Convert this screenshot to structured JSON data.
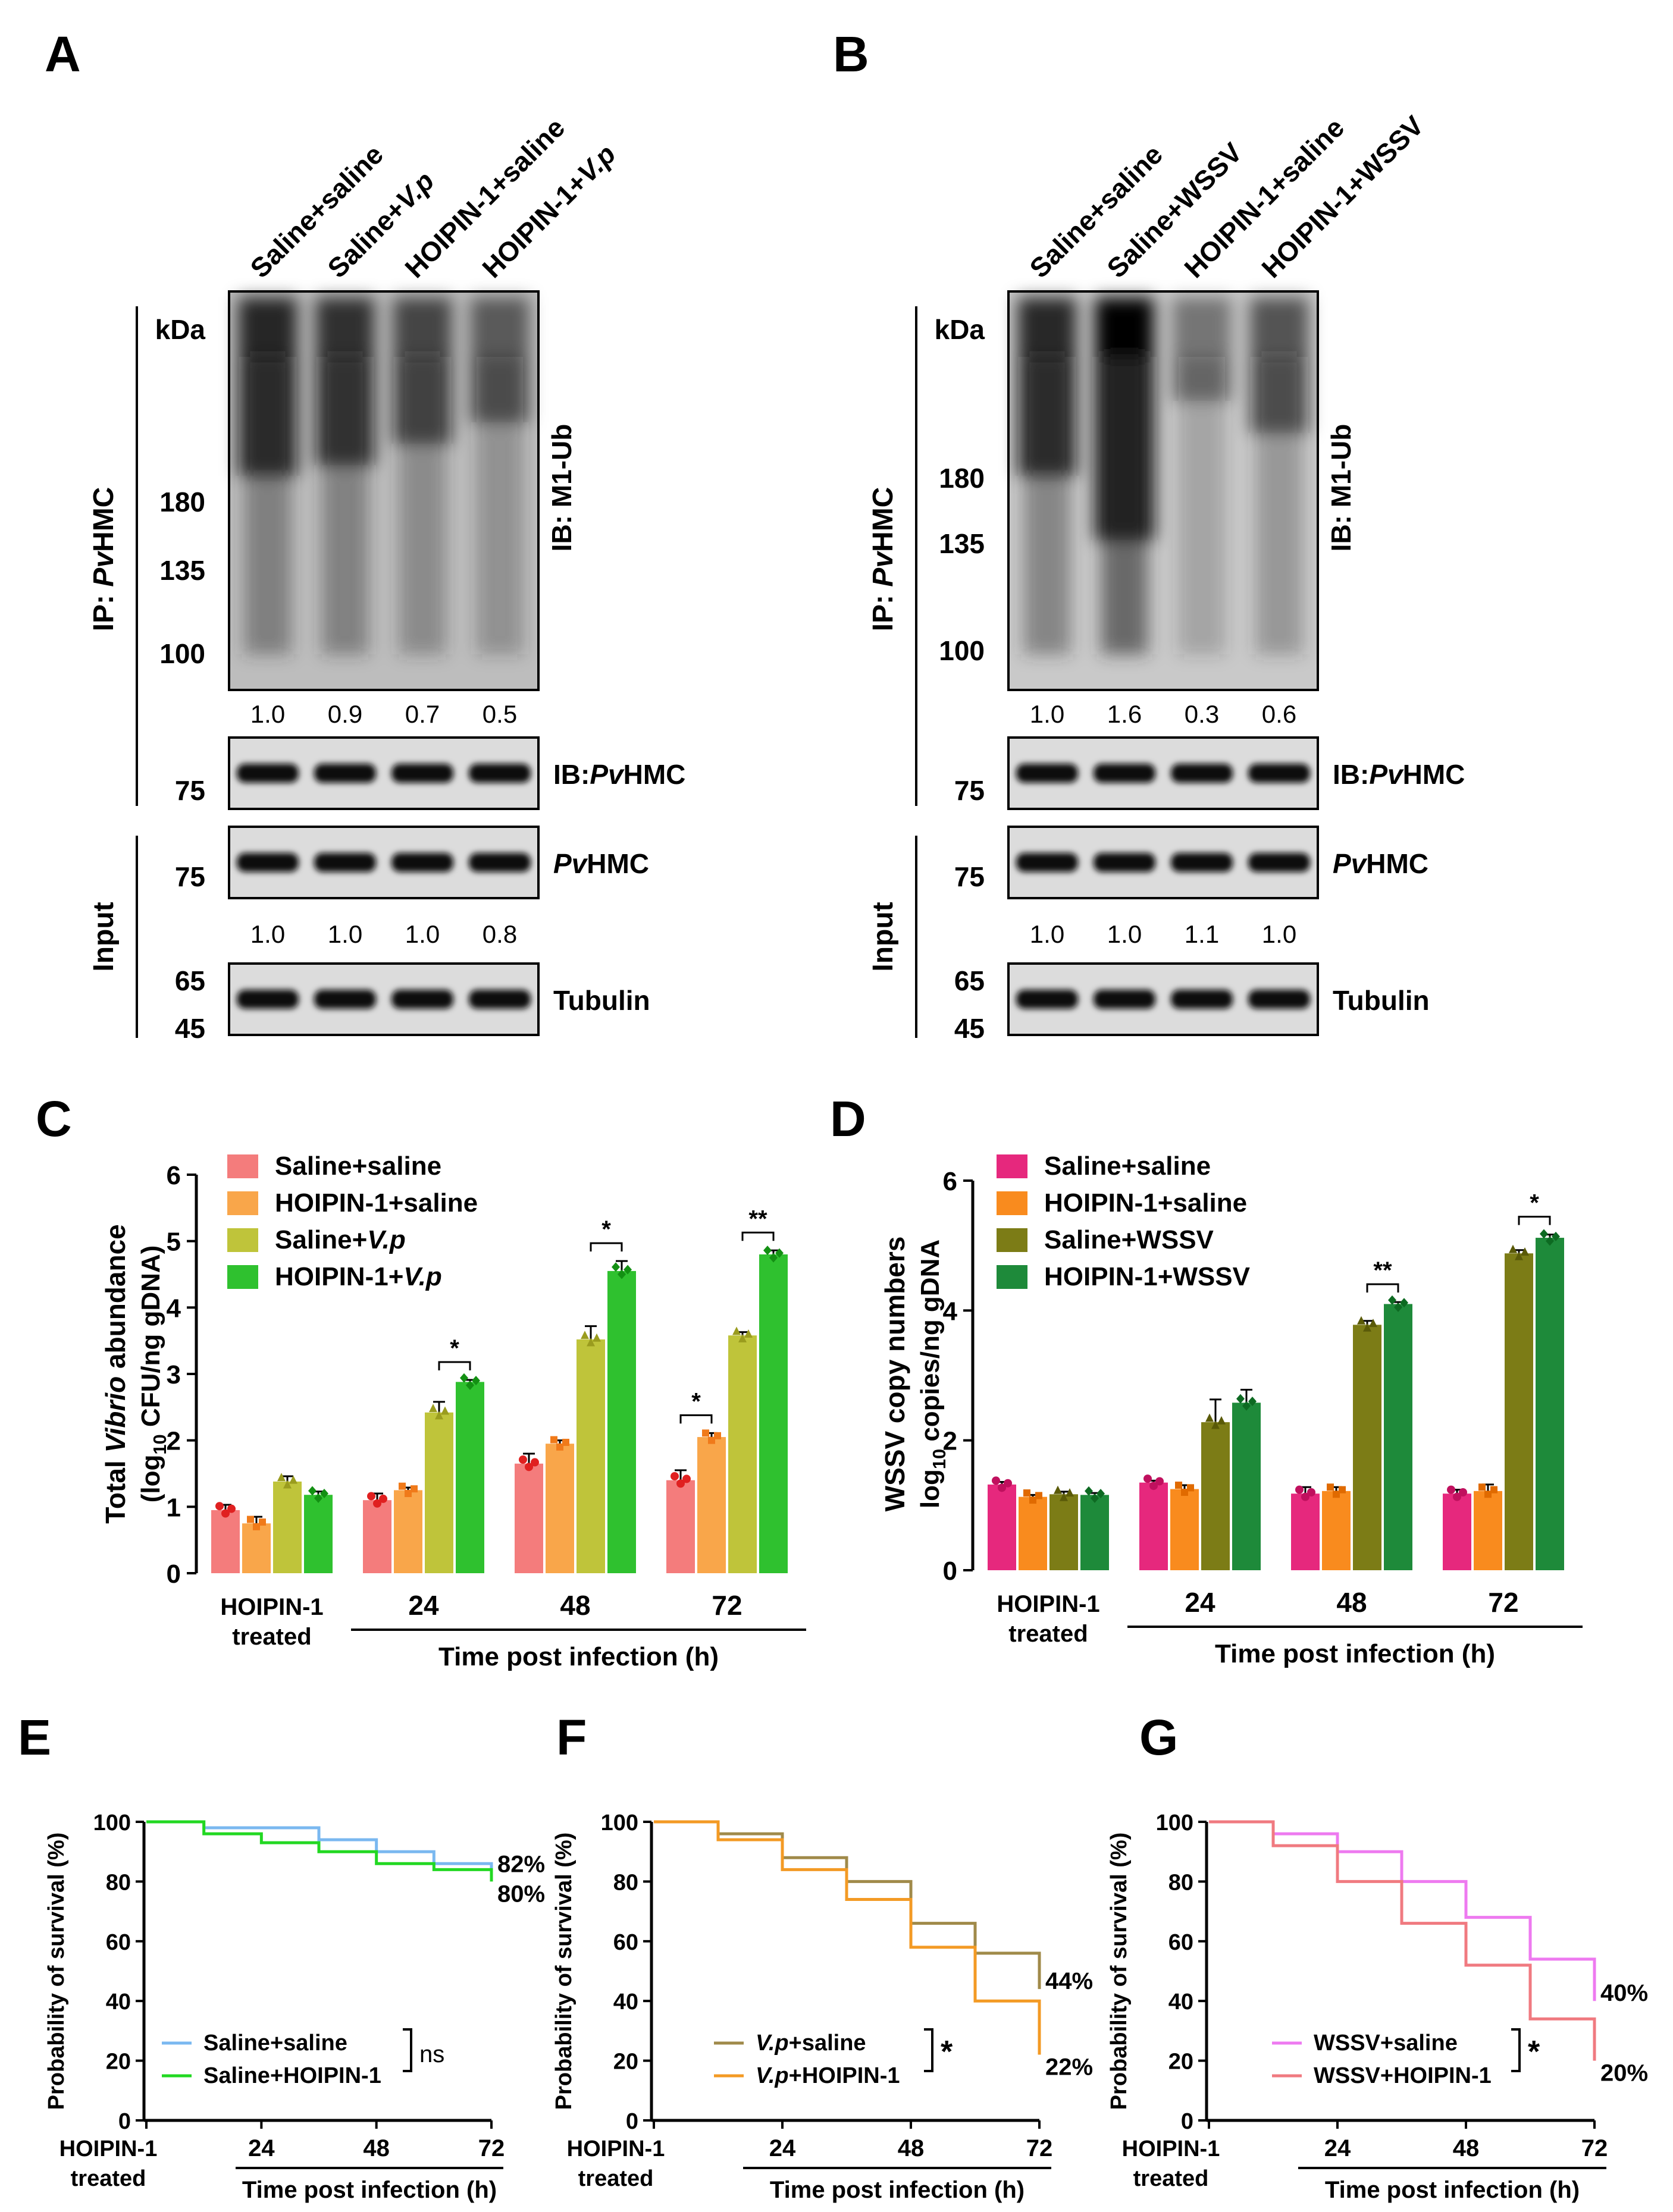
{
  "panels": {
    "A": {
      "letter": "A",
      "lanes": [
        "Saline+saline",
        "Saline+",
        "HOIPIN-1+saline",
        "HOIPIN-1+"
      ],
      "lanes_italic": [
        "",
        "V.p",
        "",
        "V.p"
      ],
      "ip_label_prefix": "IP: ",
      "ip_label_italic": "Pv",
      "ip_label_suffix": "HMC",
      "input_label": "Input",
      "kda": "kDa",
      "markers_top": [
        "180",
        "135",
        "100"
      ],
      "ib_label": "IB: M1-Ub",
      "quant_ub": [
        "1.0",
        "0.9",
        "0.7",
        "0.5"
      ],
      "marker_75a": "75",
      "ib_hmc_prefix": "IB:",
      "ib_hmc_italic": "Pv",
      "ib_hmc_suffix": "HMC",
      "marker_75b": "75",
      "hmc_italic": "Pv",
      "hmc_suffix": "HMC",
      "quant_input": [
        "1.0",
        "1.0",
        "1.0",
        "0.8"
      ],
      "markers_bottom": [
        "65",
        "45"
      ],
      "tubulin": "Tubulin",
      "ub_intensity": [
        1.0,
        0.9,
        0.7,
        0.5
      ]
    },
    "B": {
      "letter": "B",
      "lanes": [
        "Saline+saline",
        "Saline+WSSV",
        "HOIPIN-1+saline",
        "HOIPIN-1+WSSV"
      ],
      "ip_label_prefix": "IP: ",
      "ip_label_italic": "Pv",
      "ip_label_suffix": "HMC",
      "input_label": "Input",
      "kda": "kDa",
      "markers_top": [
        "180",
        "135",
        "100"
      ],
      "ib_label": "IB: M1-Ub",
      "quant_ub": [
        "1.0",
        "1.6",
        "0.3",
        "0.6"
      ],
      "marker_75a": "75",
      "ib_hmc_prefix": "IB:",
      "ib_hmc_italic": "Pv",
      "ib_hmc_suffix": "HMC",
      "marker_75b": "75",
      "hmc_italic": "Pv",
      "hmc_suffix": "HMC",
      "quant_input": [
        "1.0",
        "1.0",
        "1.1",
        "1.0"
      ],
      "markers_bottom": [
        "65",
        "45"
      ],
      "tubulin": "Tubulin",
      "ub_intensity": [
        1.0,
        1.6,
        0.3,
        0.6
      ]
    },
    "C": {
      "letter": "C"
    },
    "D": {
      "letter": "D"
    },
    "E": {
      "letter": "E"
    },
    "F": {
      "letter": "F"
    },
    "G": {
      "letter": "G"
    }
  },
  "chart_data": [
    {
      "id": "C",
      "type": "bar",
      "ylabel_parts": [
        "Total ",
        "Vibrio",
        " abundance"
      ],
      "ylabel2_parts": [
        "(log",
        "10",
        " CFU/ng gDNA)"
      ],
      "ylim": [
        0,
        6
      ],
      "yticks": [
        "0",
        "1",
        "2",
        "3",
        "4",
        "5",
        "6"
      ],
      "groups": [
        "HOIPIN-1",
        "24",
        "48",
        "72"
      ],
      "group_sub": "treated",
      "xlabel": "Time post infection (h)",
      "series": [
        {
          "name": "Saline+saline",
          "name_plain": "Saline+saline",
          "name_italic": "",
          "color": "#f47c7c",
          "dot": "#e02020",
          "values": [
            0.95,
            1.1,
            1.65,
            1.4
          ],
          "err": [
            0.08,
            0.1,
            0.15,
            0.15
          ]
        },
        {
          "name": "HOIPIN-1+saline",
          "name_plain": "HOIPIN-1+saline",
          "name_italic": "",
          "color": "#f9a64a",
          "dot": "#f07a1a",
          "values": [
            0.75,
            1.25,
            1.95,
            2.05
          ],
          "err": [
            0.1,
            0.04,
            0.05,
            0.06
          ]
        },
        {
          "name": "Saline+V.p",
          "name_plain": "Saline+",
          "name_italic": "V.p",
          "color": "#bfc43a",
          "dot": "#9a9c1e",
          "values": [
            1.38,
            2.42,
            3.52,
            3.58
          ],
          "err": [
            0.08,
            0.16,
            0.2,
            0.05
          ]
        },
        {
          "name": "HOIPIN-1+V.p",
          "name_plain": "HOIPIN-1+",
          "name_italic": "V.p",
          "color": "#2fc12f",
          "dot": "#139013",
          "values": [
            1.18,
            2.88,
            4.55,
            4.8
          ],
          "err": [
            0.05,
            0.03,
            0.15,
            0.06
          ]
        }
      ],
      "sig": [
        {
          "group": 1,
          "from": 2,
          "to": 3,
          "text": "*"
        },
        {
          "group": 2,
          "from": 2,
          "to": 3,
          "text": "*"
        },
        {
          "group": 3,
          "from": 0,
          "to": 1,
          "text": "*"
        },
        {
          "group": 3,
          "from": 2,
          "to": 3,
          "text": "**"
        }
      ]
    },
    {
      "id": "D",
      "type": "bar",
      "ylabel": "WSSV copy numbers",
      "ylabel2_parts": [
        "log",
        "10",
        " copies/ng gDNA"
      ],
      "ylim": [
        0,
        6
      ],
      "yticks": [
        "0",
        "2",
        "4",
        "6"
      ],
      "groups": [
        "HOIPIN-1",
        "24",
        "48",
        "72"
      ],
      "group_sub": "treated",
      "xlabel": "Time post infection (h)",
      "series": [
        {
          "name": "Saline+saline",
          "color": "#e6287d",
          "dot": "#c0105e",
          "values": [
            1.32,
            1.35,
            1.18,
            1.18
          ],
          "err": [
            0.04,
            0.03,
            0.1,
            0.06
          ]
        },
        {
          "name": "HOIPIN-1+saline",
          "color": "#f98b1e",
          "dot": "#e06a00",
          "values": [
            1.13,
            1.25,
            1.22,
            1.22
          ],
          "err": [
            0.03,
            0.06,
            0.06,
            0.1
          ]
        },
        {
          "name": "Saline+WSSV",
          "color": "#7c7c16",
          "dot": "#5a5a08",
          "values": [
            1.17,
            2.28,
            3.78,
            4.88
          ],
          "err": [
            0.04,
            0.35,
            0.06,
            0.05
          ]
        },
        {
          "name": "HOIPIN-1+WSSV",
          "color": "#1e8a3a",
          "dot": "#0d6a22",
          "values": [
            1.16,
            2.58,
            4.1,
            5.12
          ],
          "err": [
            0.03,
            0.2,
            0.03,
            0.05
          ]
        }
      ],
      "sig": [
        {
          "group": 2,
          "from": 2,
          "to": 3,
          "text": "**"
        },
        {
          "group": 3,
          "from": 2,
          "to": 3,
          "text": "*"
        }
      ]
    },
    {
      "id": "E",
      "type": "line",
      "ylabel": "Probability of survival (%)",
      "yticks": [
        "0",
        "20",
        "40",
        "60",
        "80",
        "100"
      ],
      "xticks": [
        "24",
        "48",
        "72"
      ],
      "x0_label": "HOIPIN-1",
      "x0_sub": "treated",
      "xlabel": "Time post infection (h)",
      "series": [
        {
          "name": "Saline+saline",
          "name_plain": "Saline+saline",
          "name_italic": "",
          "color": "#7ab8f0",
          "end_label": "82%",
          "steps": [
            [
              0,
              100
            ],
            [
              12,
              98
            ],
            [
              24,
              98
            ],
            [
              36,
              94
            ],
            [
              48,
              90
            ],
            [
              60,
              86
            ],
            [
              72,
              82
            ]
          ]
        },
        {
          "name": "Saline+HOIPIN-1",
          "name_plain": "Saline+HOIPIN-1",
          "name_italic": "",
          "color": "#22d822",
          "end_label": "80%",
          "steps": [
            [
              0,
              100
            ],
            [
              12,
              96
            ],
            [
              24,
              93
            ],
            [
              36,
              90
            ],
            [
              48,
              86
            ],
            [
              60,
              84
            ],
            [
              72,
              80
            ]
          ]
        }
      ],
      "sig": "ns"
    },
    {
      "id": "F",
      "type": "line",
      "ylabel": "Probability of survival (%)",
      "yticks": [
        "0",
        "20",
        "40",
        "60",
        "80",
        "100"
      ],
      "xticks": [
        "24",
        "48",
        "72"
      ],
      "x0_label": "HOIPIN-1",
      "x0_sub": "treated",
      "xlabel": "Time post infection (h)",
      "series": [
        {
          "name": "V.p+saline",
          "name_plain": "+saline",
          "name_italic": "V.p",
          "color": "#a08a4a",
          "end_label": "44%",
          "steps": [
            [
              0,
              100
            ],
            [
              12,
              96
            ],
            [
              24,
              88
            ],
            [
              36,
              80
            ],
            [
              48,
              66
            ],
            [
              60,
              56
            ],
            [
              72,
              44
            ]
          ]
        },
        {
          "name": "V.p+HOIPIN-1",
          "name_plain": "+HOIPIN-1",
          "name_italic": "V.p",
          "color": "#f39a24",
          "end_label": "22%",
          "steps": [
            [
              0,
              100
            ],
            [
              12,
              94
            ],
            [
              24,
              84
            ],
            [
              36,
              74
            ],
            [
              48,
              58
            ],
            [
              60,
              40
            ],
            [
              72,
              22
            ]
          ]
        }
      ],
      "sig": "*"
    },
    {
      "id": "G",
      "type": "line",
      "ylabel": "Probability of survival (%)",
      "yticks": [
        "0",
        "20",
        "40",
        "60",
        "80",
        "100"
      ],
      "xticks": [
        "24",
        "48",
        "72"
      ],
      "x0_label": "HOIPIN-1",
      "x0_sub": "treated",
      "xlabel": "Time post infection (h)",
      "series": [
        {
          "name": "WSSV+saline",
          "name_plain": "WSSV+saline",
          "name_italic": "",
          "color": "#ee7af0",
          "end_label": "40%",
          "steps": [
            [
              0,
              100
            ],
            [
              12,
              96
            ],
            [
              24,
              90
            ],
            [
              36,
              80
            ],
            [
              48,
              68
            ],
            [
              60,
              54
            ],
            [
              72,
              40
            ]
          ]
        },
        {
          "name": "WSSV+HOIPIN-1",
          "name_plain": "WSSV+HOIPIN-1",
          "name_italic": "",
          "color": "#f07a80",
          "end_label": "20%",
          "steps": [
            [
              0,
              100
            ],
            [
              12,
              92
            ],
            [
              24,
              80
            ],
            [
              36,
              66
            ],
            [
              48,
              52
            ],
            [
              60,
              34
            ],
            [
              72,
              20
            ]
          ]
        }
      ],
      "sig": "*"
    }
  ]
}
